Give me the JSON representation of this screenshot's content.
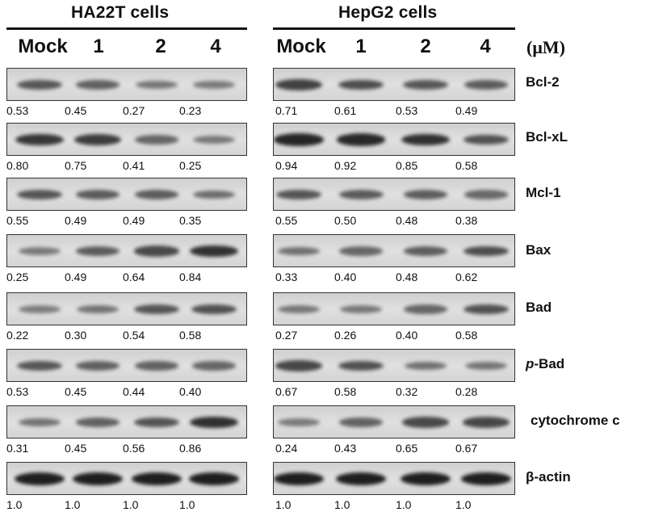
{
  "panels": [
    {
      "title": "HA22T cells",
      "lanes": [
        "Mock",
        "1",
        "2",
        "4"
      ],
      "values": [
        [
          "0.53",
          "0.45",
          "0.27",
          "0.23"
        ],
        [
          "0.80",
          "0.75",
          "0.41",
          "0.25"
        ],
        [
          "0.55",
          "0.49",
          "0.49",
          "0.35"
        ],
        [
          "0.25",
          "0.49",
          "0.64",
          "0.84"
        ],
        [
          "0.22",
          "0.30",
          "0.54",
          "0.58"
        ],
        [
          "0.53",
          "0.45",
          "0.44",
          "0.40"
        ],
        [
          "0.31",
          "0.45",
          "0.56",
          "0.86"
        ],
        [
          "1.0",
          "1.0",
          "1.0",
          "1.0"
        ]
      ]
    },
    {
      "title": "HepG2 cells",
      "lanes": [
        "Mock",
        "1",
        "2",
        "4"
      ],
      "values": [
        [
          "0.71",
          "0.61",
          "0.53",
          "0.49"
        ],
        [
          "0.94",
          "0.92",
          "0.85",
          "0.58"
        ],
        [
          "0.55",
          "0.50",
          "0.48",
          "0.38"
        ],
        [
          "0.33",
          "0.40",
          "0.48",
          "0.62"
        ],
        [
          "0.27",
          "0.26",
          "0.40",
          "0.58"
        ],
        [
          "0.67",
          "0.58",
          "0.32",
          "0.28"
        ],
        [
          "0.24",
          "0.43",
          "0.65",
          "0.67"
        ],
        [
          "1.0",
          "1.0",
          "1.0",
          "1.0"
        ]
      ]
    }
  ],
  "unit": "(μM)",
  "proteins": [
    {
      "prefix": "",
      "name": "Bcl-2"
    },
    {
      "prefix": "",
      "name": "Bcl-xL"
    },
    {
      "prefix": "",
      "name": "Mcl-1"
    },
    {
      "prefix": "",
      "name": "Bax"
    },
    {
      "prefix": "",
      "name": "Bad"
    },
    {
      "prefix": "p",
      "name": "-Bad"
    },
    {
      "prefix": "",
      "name": "cytochrome c"
    },
    {
      "prefix": "",
      "name": "β-actin"
    }
  ]
}
